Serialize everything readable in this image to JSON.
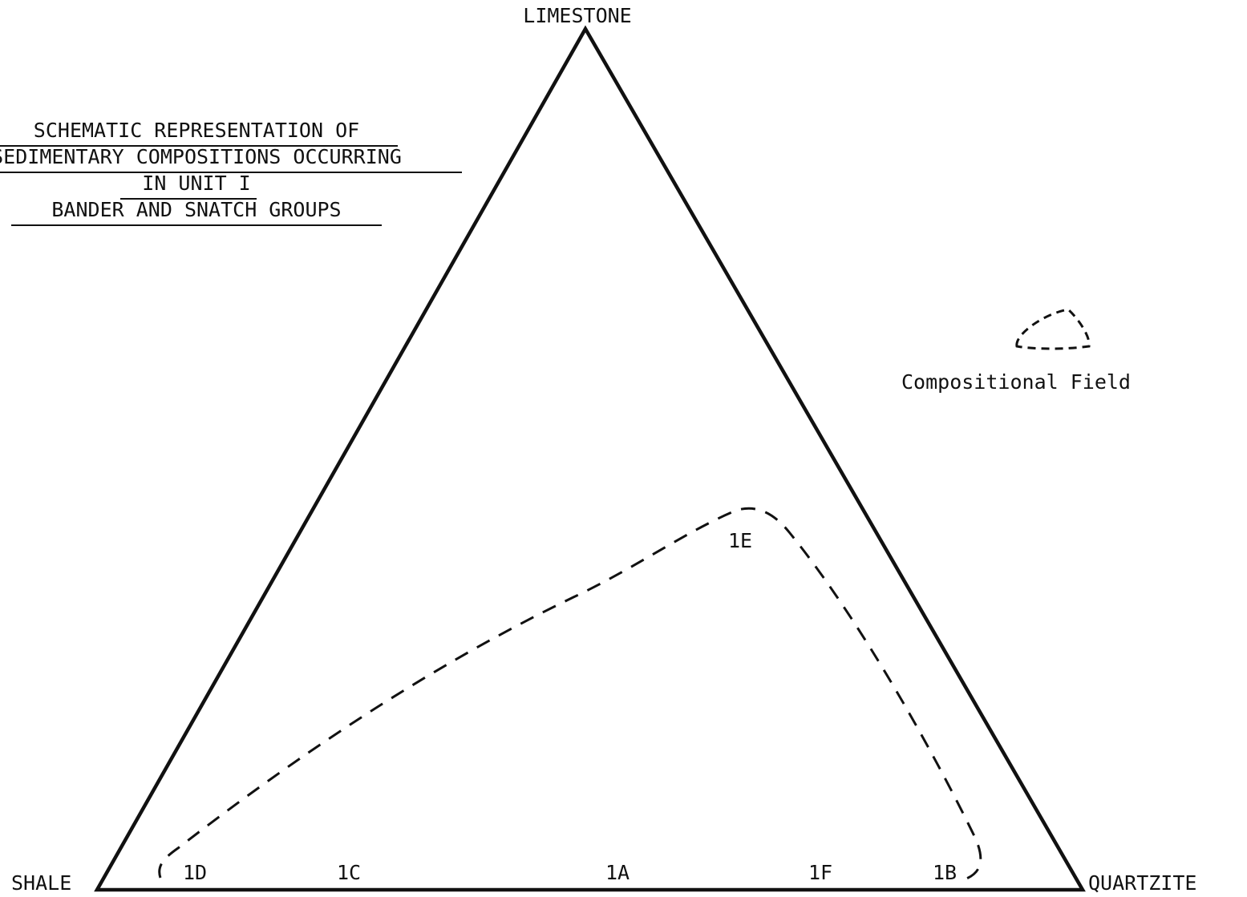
{
  "title": {
    "lines": [
      "SCHEMATIC REPRESENTATION OF",
      "SEDIMENTARY COMPOSITIONS OCCURRING",
      "IN UNIT I",
      "BANDER AND SNATCH GROUPS"
    ]
  },
  "vertices": {
    "top": "LIMESTONE",
    "left": "SHALE",
    "right": "QUARTZITE"
  },
  "regions": {
    "r1D": "1D",
    "r1C": "1C",
    "r1A": "1A",
    "r1F": "1F",
    "r1B": "1B",
    "r1E": "1E"
  },
  "legend": {
    "label": "Compositional Field",
    "symbol": "dashed-outline"
  },
  "colors": {
    "ink": "#111111",
    "background": "#ffffff"
  }
}
